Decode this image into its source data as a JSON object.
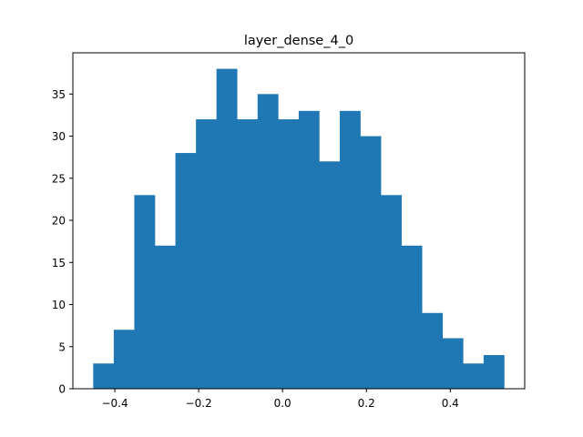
{
  "chart_data": {
    "type": "bar",
    "title": "layer_dense_4_0",
    "xlabel": "",
    "ylabel": "",
    "bin_edges": [
      -0.4515,
      -0.4025,
      -0.3535,
      -0.3045,
      -0.2555,
      -0.2065,
      -0.1575,
      -0.1085,
      -0.0595,
      -0.0105,
      0.0385,
      0.0875,
      0.1365,
      0.1855,
      0.2345,
      0.2835,
      0.3325,
      0.3815,
      0.4305,
      0.4795,
      0.5285
    ],
    "values": [
      3,
      7,
      23,
      17,
      28,
      32,
      38,
      32,
      35,
      32,
      33,
      27,
      33,
      30,
      23,
      17,
      9,
      6,
      3,
      4
    ],
    "xlim": [
      -0.5,
      0.5775
    ],
    "ylim": [
      0,
      39.9
    ],
    "xticks": [
      -0.4,
      -0.2,
      0.0,
      0.2,
      0.4
    ],
    "xtick_labels": [
      "−0.4",
      "−0.2",
      "0.0",
      "0.2",
      "0.4"
    ],
    "yticks": [
      0,
      5,
      10,
      15,
      20,
      25,
      30,
      35
    ],
    "ytick_labels": [
      "0",
      "5",
      "10",
      "15",
      "20",
      "25",
      "30",
      "35"
    ],
    "bar_color": "#1f77b4",
    "grid": false,
    "legend": "none"
  }
}
